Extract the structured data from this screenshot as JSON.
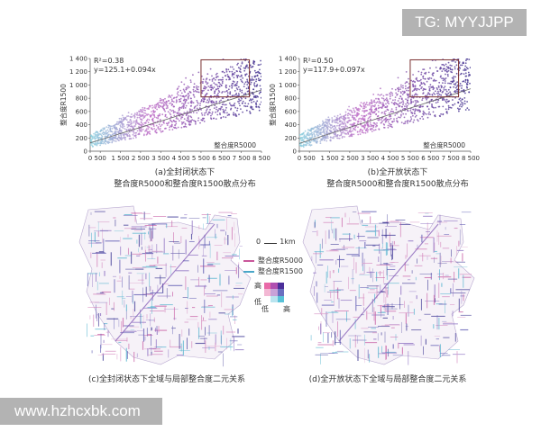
{
  "watermarks": {
    "top": "TG: MYYJJPP",
    "bottom": "www.hzhcxbk.com"
  },
  "chart_data": [
    {
      "type": "scatter",
      "panel": "a",
      "ylabel": "整合度R1500",
      "xlabel": "整合度R5000",
      "xlim": [
        0,
        8500
      ],
      "ylim": [
        0,
        1400
      ],
      "xticks": [
        "0",
        "500",
        "1 500",
        "2 500",
        "3 500",
        "4 500",
        "5 500",
        "6 500",
        "7 500",
        "8 500"
      ],
      "yticks": [
        "0",
        "200",
        "400",
        "600",
        "800",
        "1 000",
        "1 200",
        "1 400"
      ],
      "r2_label": "R²=0.38",
      "equation_label": "y=125.1+0.094x",
      "fit": {
        "intercept": 125.1,
        "slope": 0.094
      },
      "highlight_box": {
        "x": [
          5500,
          7900
        ],
        "y": [
          820,
          1380
        ]
      },
      "caption_line1": "(a)全封闭状态下",
      "caption_line2": "整合度R5000和整合度R1500散点分布",
      "colors": {
        "low": "#8fd3e0",
        "mid": "#c070c8",
        "high": "#3a2b8c"
      }
    },
    {
      "type": "scatter",
      "panel": "b",
      "ylabel": "整合度R1500",
      "xlabel": "整合度R5000",
      "xlim": [
        0,
        8500
      ],
      "ylim": [
        0,
        1400
      ],
      "xticks": [
        "0",
        "500",
        "1 500",
        "2 500",
        "3 500",
        "4 500",
        "5 500",
        "6 500",
        "7 500",
        "8 500"
      ],
      "yticks": [
        "0",
        "200",
        "400",
        "600",
        "800",
        "1 000",
        "1 200",
        "1 400"
      ],
      "r2_label": "R²=0.50",
      "equation_label": "y=117.9+0.097x",
      "fit": {
        "intercept": 117.9,
        "slope": 0.097
      },
      "highlight_box": {
        "x": [
          5500,
          7900
        ],
        "y": [
          820,
          1380
        ]
      },
      "caption_line1": "(b)全开放状态下",
      "caption_line2": "整合度R5000和整合度R1500散点分布",
      "colors": {
        "low": "#8fd3e0",
        "mid": "#c070c8",
        "high": "#3a2b8c"
      }
    }
  ],
  "maps": {
    "c_caption": "(c)全封闭状态下全域与局部整合度二元关系",
    "d_caption": "(d)全开放状态下全域与局部整合度二元关系"
  },
  "legend": {
    "scale_zero": "0",
    "scale_label": "1km",
    "line1_label": "整合度R5000",
    "line2_label": "整合度R1500",
    "line1_color": "#c9579a",
    "line2_color": "#4aa6c8",
    "high_y": "高",
    "low_y": "低",
    "low_x": "低",
    "high_x": "高",
    "bivariate_colors": [
      "#e96aa8",
      "#b04fb0",
      "#4b2f9a",
      "#f3b8d4",
      "#c8a2d8",
      "#6a6fc0",
      "#ffffff",
      "#b9e4ef",
      "#58c2d8"
    ]
  }
}
